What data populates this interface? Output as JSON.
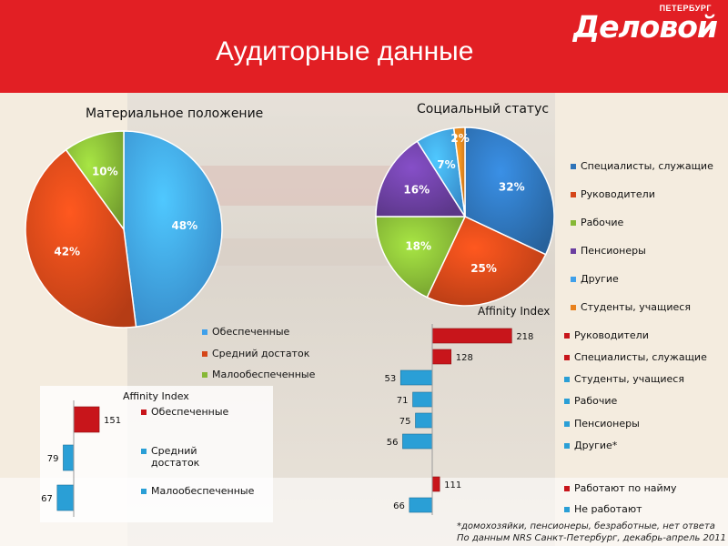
{
  "slide": {
    "title": "Аудиторные данные",
    "logo_small": "ПЕТЕРБУРГ",
    "logo_big": "Деловой",
    "accent_color": "#e21f24"
  },
  "footnote": {
    "line1": "*домохозяйки, пенсионеры, безработные, нет ответа",
    "line2": "По данным NRS Санкт-Петербург, декабрь-апрель 2011"
  },
  "chart_data": [
    {
      "type": "pie",
      "title": "Материальное положение",
      "labels": [
        "Обеспеченные",
        "Средний достаток",
        "Малообеспеченные"
      ],
      "values": [
        48,
        42,
        10
      ],
      "value_labels": [
        "48%",
        "42%",
        "10%"
      ],
      "colors": [
        "#3fa0ea",
        "#d54619",
        "#86b836"
      ],
      "legend_position": "bottom"
    },
    {
      "type": "pie",
      "title": "Социальный статус",
      "labels": [
        "Специалисты, служащие",
        "Руководители",
        "Рабочие",
        "Пенсионеры",
        "Другие",
        "Студенты, учащиеся"
      ],
      "values": [
        32,
        25,
        18,
        16,
        7,
        2
      ],
      "value_labels": [
        "32%",
        "25%",
        "18%",
        "16%",
        "7%",
        "2%"
      ],
      "colors": [
        "#2e73b8",
        "#d54619",
        "#86b836",
        "#6b3fa0",
        "#3fa0ea",
        "#e8811d"
      ],
      "legend_position": "right"
    },
    {
      "type": "bar",
      "orientation": "horizontal",
      "title": "Affinity Index",
      "baseline": 100,
      "categories": [
        "Обеспеченные",
        "Средний достаток",
        "Малообеспеченные"
      ],
      "values": [
        151,
        79,
        67
      ],
      "colors": [
        "#c8151b",
        "#2a9fd6",
        "#2a9fd6"
      ]
    },
    {
      "type": "bar",
      "orientation": "horizontal",
      "title": "Affinity Index",
      "baseline": 100,
      "categories": [
        "Руководители",
        "Специалисты, служащие",
        "Студенты, учащиеся",
        "Рабочие",
        "Пенсионеры",
        "Другие*",
        "Работают по найму",
        "Не работают"
      ],
      "values": [
        218,
        128,
        53,
        71,
        75,
        56,
        111,
        66
      ],
      "colors": [
        "#c8151b",
        "#c8151b",
        "#2a9fd6",
        "#2a9fd6",
        "#2a9fd6",
        "#2a9fd6",
        "#c8151b",
        "#2a9fd6"
      ]
    }
  ]
}
